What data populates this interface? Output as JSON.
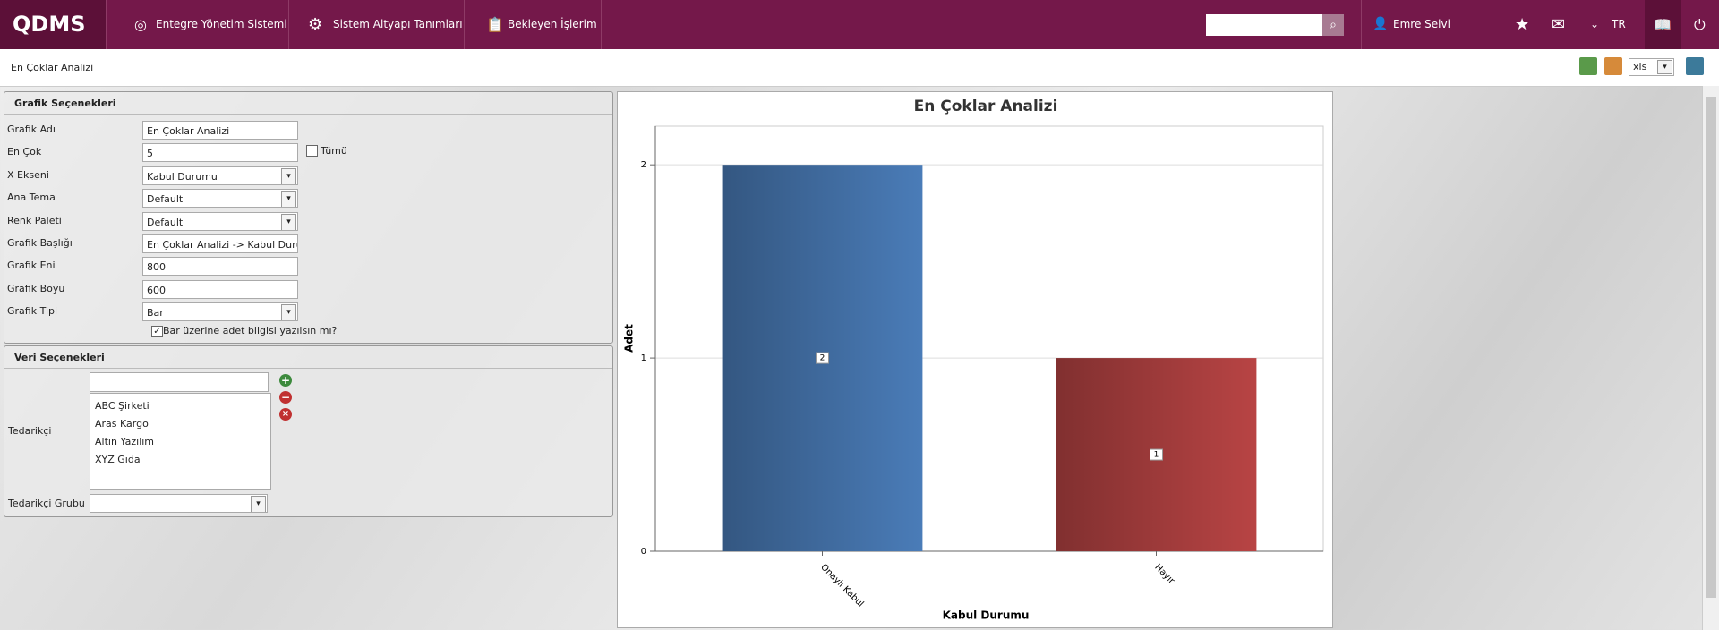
{
  "header": {
    "logo": "QDMS",
    "nav": [
      "Entegre Yönetim Sistemi",
      "Sistem Altyapı Tanımları",
      "Bekleyen İşlerim"
    ],
    "user": "Emre Selvi",
    "language": "TR"
  },
  "page": {
    "title": "En Çoklar Analizi",
    "export_format": "xls"
  },
  "chart_options": {
    "title": "Grafik Seçenekleri",
    "all_label": "Tümü",
    "show_count_label": "Bar üzerine adet bilgisi yazılsın mı?",
    "fields": [
      {
        "label": "Grafik Adı",
        "value": "En Çoklar Analizi",
        "kind": "input"
      },
      {
        "label": "En Çok",
        "value": "5",
        "kind": "input"
      },
      {
        "label": "X Ekseni",
        "value": "Kabul Durumu",
        "kind": "select"
      },
      {
        "label": "Ana Tema",
        "value": "Default",
        "kind": "select"
      },
      {
        "label": "Renk Paleti",
        "value": "Default",
        "kind": "select"
      },
      {
        "label": "Grafik Başlığı",
        "value": "En Çoklar Analizi -> Kabul Durum",
        "kind": "input"
      },
      {
        "label": "Grafik Eni",
        "value": "800",
        "kind": "input"
      },
      {
        "label": "Grafik Boyu",
        "value": "600",
        "kind": "input"
      },
      {
        "label": "Grafik Tipi",
        "value": "Bar",
        "kind": "select"
      }
    ]
  },
  "data_options": {
    "title": "Veri Seçenekleri",
    "supplier_label": "Tedarikçi",
    "suppliers": [
      "ABC Şirketi",
      "Aras Kargo",
      "Altın Yazılım",
      "XYZ Gıda"
    ],
    "supplier_group_label": "Tedarikçi Grubu"
  },
  "chart_data": {
    "type": "bar",
    "title": "En Çoklar Analizi",
    "x_label": "Kabul Durumu",
    "y_label": "Adet",
    "categories": [
      "Onaylı Kabul",
      "Hayır"
    ],
    "values": [
      2,
      1
    ],
    "colors": [
      "#4a7cb8",
      "#b84444"
    ],
    "ylim": [
      0,
      2.2
    ],
    "yticks": [
      0,
      1,
      2
    ],
    "grid": true
  }
}
